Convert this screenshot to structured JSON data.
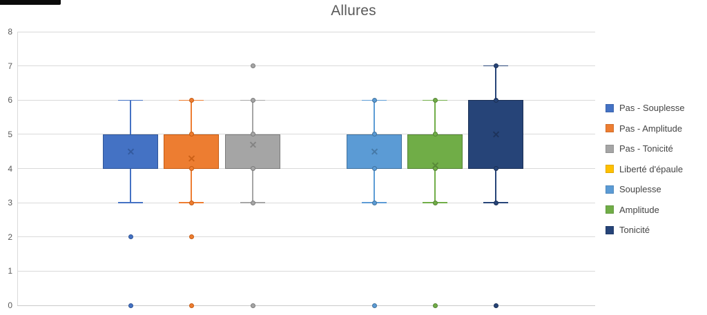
{
  "corner_artifact": {
    "present": true
  },
  "chart_data": {
    "type": "boxplot",
    "title": "Allures",
    "xlabel": "",
    "ylabel": "",
    "ylim": [
      0,
      8
    ],
    "yticks": [
      0,
      1,
      2,
      3,
      4,
      5,
      6,
      7,
      8
    ],
    "grid": "horizontal",
    "legend_position": "right",
    "background": "#ffffff",
    "gridline_color": "#d9d9d9",
    "axis_text_color": "#595959",
    "series": [
      {
        "name": "Pas - Souplesse",
        "color": "#4472C4",
        "border": "#2F5597",
        "q1": 4,
        "q3": 5,
        "whisker_low": 3,
        "whisker_high": 6,
        "mean": 4.5,
        "marker_points": [],
        "outliers": [
          2,
          0
        ]
      },
      {
        "name": "Pas - Amplitude",
        "color": "#ED7D31",
        "border": "#C55A11",
        "q1": 4,
        "q3": 5,
        "whisker_low": 3,
        "whisker_high": 6,
        "mean": 4.3,
        "marker_points": [
          6,
          5,
          4,
          3
        ],
        "outliers": [
          2,
          0
        ]
      },
      {
        "name": "Pas - Tonicité",
        "color": "#A5A5A5",
        "border": "#7B7B7B",
        "q1": 4,
        "q3": 5,
        "whisker_low": 3,
        "whisker_high": 6,
        "mean": 4.7,
        "marker_points": [
          6,
          5,
          4,
          3
        ],
        "outliers": [
          7,
          0
        ]
      },
      {
        "name": "Liberté d'épaule",
        "color": "#FFC000",
        "border": "#BF9000",
        "q1": null,
        "q3": null,
        "whisker_low": null,
        "whisker_high": null,
        "mean": null,
        "marker_points": [],
        "outliers": []
      },
      {
        "name": "Souplesse",
        "color": "#5B9BD5",
        "border": "#41719C",
        "q1": 4,
        "q3": 5,
        "whisker_low": 3,
        "whisker_high": 6,
        "mean": 4.5,
        "marker_points": [
          6,
          5,
          4,
          3
        ],
        "outliers": [
          0
        ]
      },
      {
        "name": "Amplitude",
        "color": "#70AD47",
        "border": "#548235",
        "q1": 4,
        "q3": 5,
        "whisker_low": 3,
        "whisker_high": 6,
        "mean": 4.1,
        "marker_points": [
          6,
          5,
          4,
          3
        ],
        "outliers": [
          0
        ]
      },
      {
        "name": "Tonicité",
        "color": "#264478",
        "border": "#1B3055",
        "q1": 4,
        "q3": 6,
        "whisker_low": 3,
        "whisker_high": 7,
        "mean": 5,
        "marker_points": [
          7,
          6,
          4,
          3
        ],
        "outliers": [
          0
        ]
      }
    ]
  }
}
